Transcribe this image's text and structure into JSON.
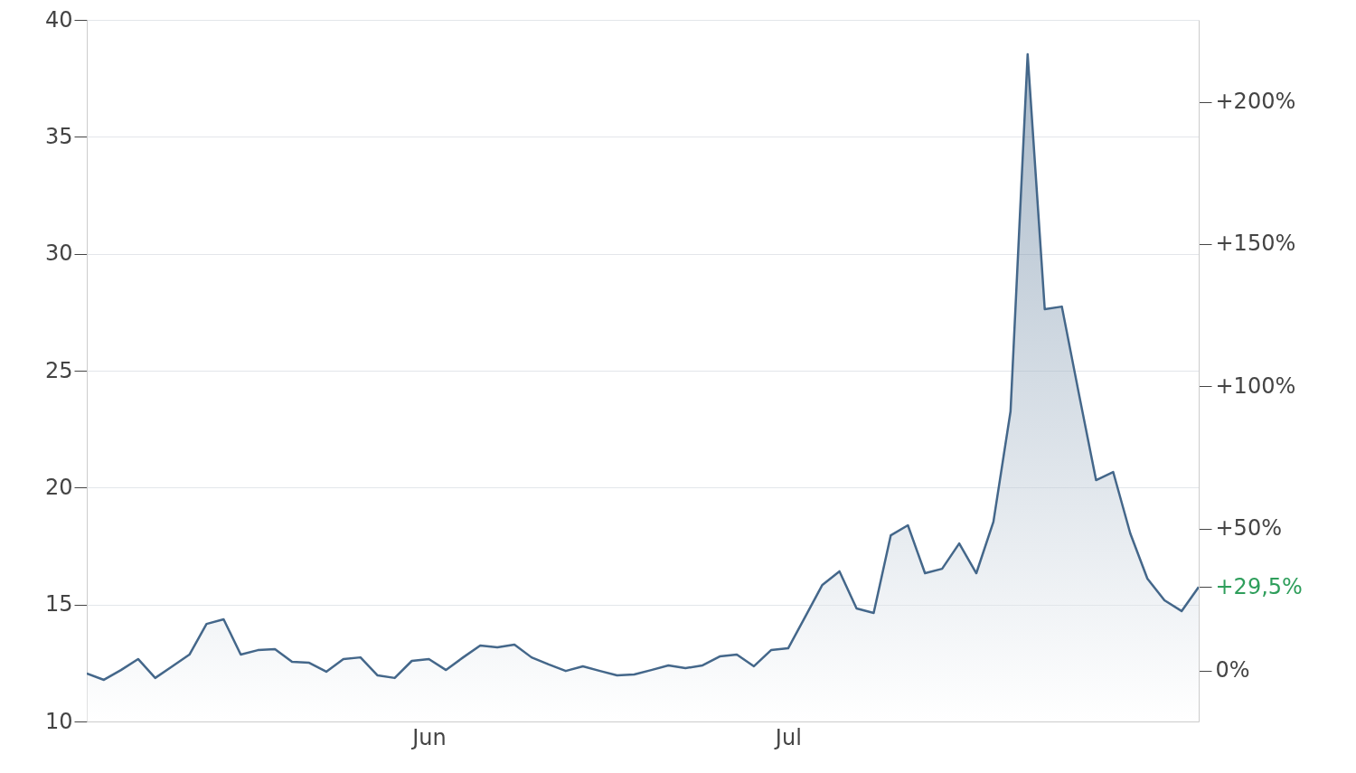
{
  "chart_data": {
    "type": "area",
    "categories": [
      null,
      null,
      null,
      null,
      null,
      null,
      null,
      null,
      null,
      null,
      null,
      null,
      null,
      null,
      null,
      null,
      null,
      null,
      null,
      null,
      "Jun",
      null,
      null,
      null,
      null,
      null,
      null,
      null,
      null,
      null,
      null,
      null,
      null,
      null,
      null,
      null,
      null,
      null,
      null,
      null,
      null,
      "Jul",
      null,
      null,
      null,
      null,
      null,
      null,
      null,
      null,
      null,
      null,
      null,
      null,
      null,
      null,
      null,
      null,
      null,
      null,
      null,
      null,
      null,
      null,
      null,
      null
    ],
    "series": [
      {
        "color": "#44678a",
        "values": [
          12.05,
          11.78,
          12.2,
          12.67,
          11.86,
          12.36,
          12.86,
          14.17,
          14.37,
          12.86,
          13.05,
          13.09,
          12.55,
          12.51,
          12.13,
          12.67,
          12.74,
          11.97,
          11.86,
          12.59,
          12.67,
          12.2,
          12.74,
          13.25,
          13.17,
          13.29,
          12.74,
          12.44,
          12.16,
          12.36,
          12.16,
          11.97,
          12.01,
          12.2,
          12.4,
          12.28,
          12.4,
          12.78,
          12.86,
          12.36,
          13.05,
          13.13,
          14.48,
          15.84,
          16.42,
          14.83,
          14.64,
          17.96,
          18.39,
          16.34,
          16.53,
          17.61,
          16.34,
          18.54,
          23.26,
          38.53,
          27.63,
          27.74,
          24.0,
          20.32,
          20.67,
          18.04,
          16.11,
          15.18,
          14.72,
          15.75
        ]
      }
    ],
    "ylim": [
      10,
      40
    ],
    "yticks": [
      10,
      15,
      20,
      25,
      30,
      35,
      40
    ],
    "y2lim": [
      -17.8,
      228.8
    ],
    "y2ticks": [
      {
        "value": 0,
        "label": "0%"
      },
      {
        "value": 29.5,
        "label": "+29,5%"
      },
      {
        "value": 50,
        "label": "+50%"
      },
      {
        "value": 100,
        "label": "+100%"
      },
      {
        "value": 150,
        "label": "+150%"
      },
      {
        "value": 200,
        "label": "+200%"
      }
    ],
    "grid": "y"
  }
}
